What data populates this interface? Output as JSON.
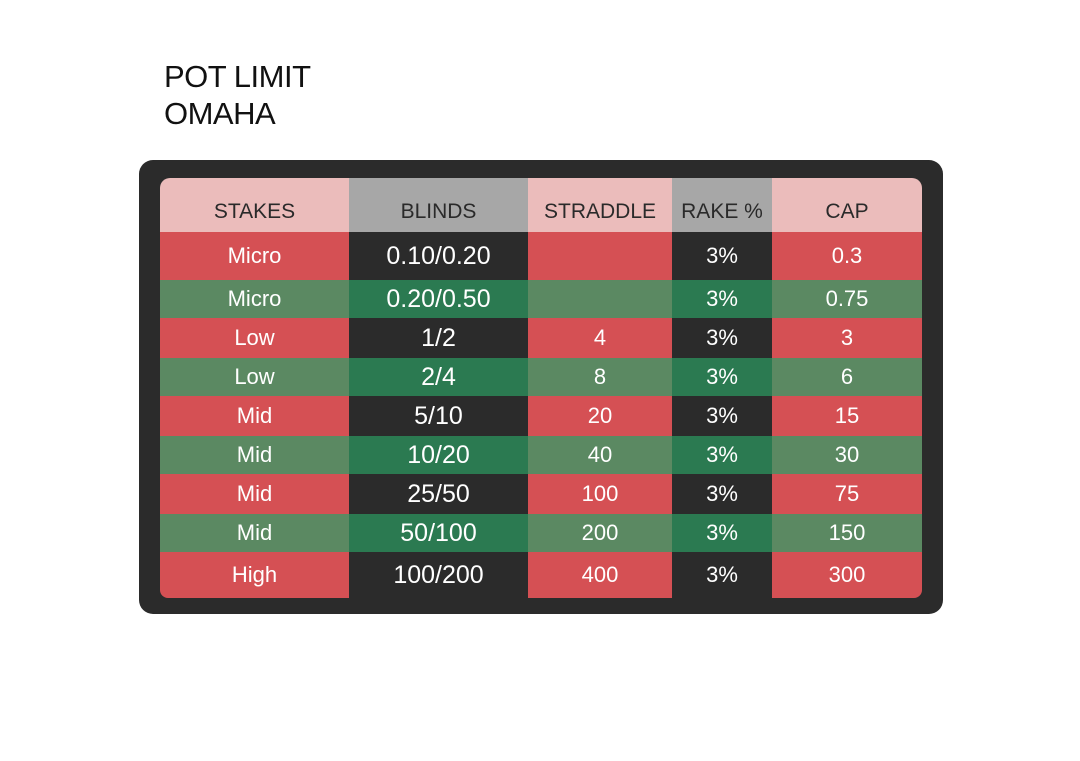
{
  "title": {
    "line1": "POT LIMIT",
    "line2": "OMAHA"
  },
  "colors": {
    "frame": "#2b2b2b",
    "header_pink": "#ebbcbb",
    "header_gray": "#a7a7a7",
    "red": "#d55054",
    "green": "#5b8962",
    "dark": "#2b2b2b",
    "dark_green": "#2b7a51"
  },
  "table": {
    "headers": {
      "stakes": "STAKES",
      "blinds": "BLINDS",
      "straddle": "STRADDLE",
      "rake": "RAKE %",
      "cap": "CAP"
    },
    "rows": [
      {
        "stakes": "Micro",
        "blinds": "0.10/0.20",
        "straddle": "",
        "rake": "3%",
        "cap": "0.3"
      },
      {
        "stakes": "Micro",
        "blinds": "0.20/0.50",
        "straddle": "",
        "rake": "3%",
        "cap": "0.75"
      },
      {
        "stakes": "Low",
        "blinds": "1/2",
        "straddle": "4",
        "rake": "3%",
        "cap": "3"
      },
      {
        "stakes": "Low",
        "blinds": "2/4",
        "straddle": "8",
        "rake": "3%",
        "cap": "6"
      },
      {
        "stakes": "Mid",
        "blinds": "5/10",
        "straddle": "20",
        "rake": "3%",
        "cap": "15"
      },
      {
        "stakes": "Mid",
        "blinds": "10/20",
        "straddle": "40",
        "rake": "3%",
        "cap": "30"
      },
      {
        "stakes": "Mid",
        "blinds": "25/50",
        "straddle": "100",
        "rake": "3%",
        "cap": "75"
      },
      {
        "stakes": "Mid",
        "blinds": "50/100",
        "straddle": "200",
        "rake": "3%",
        "cap": "150"
      },
      {
        "stakes": "High",
        "blinds": "100/200",
        "straddle": "400",
        "rake": "3%",
        "cap": "300"
      }
    ]
  }
}
